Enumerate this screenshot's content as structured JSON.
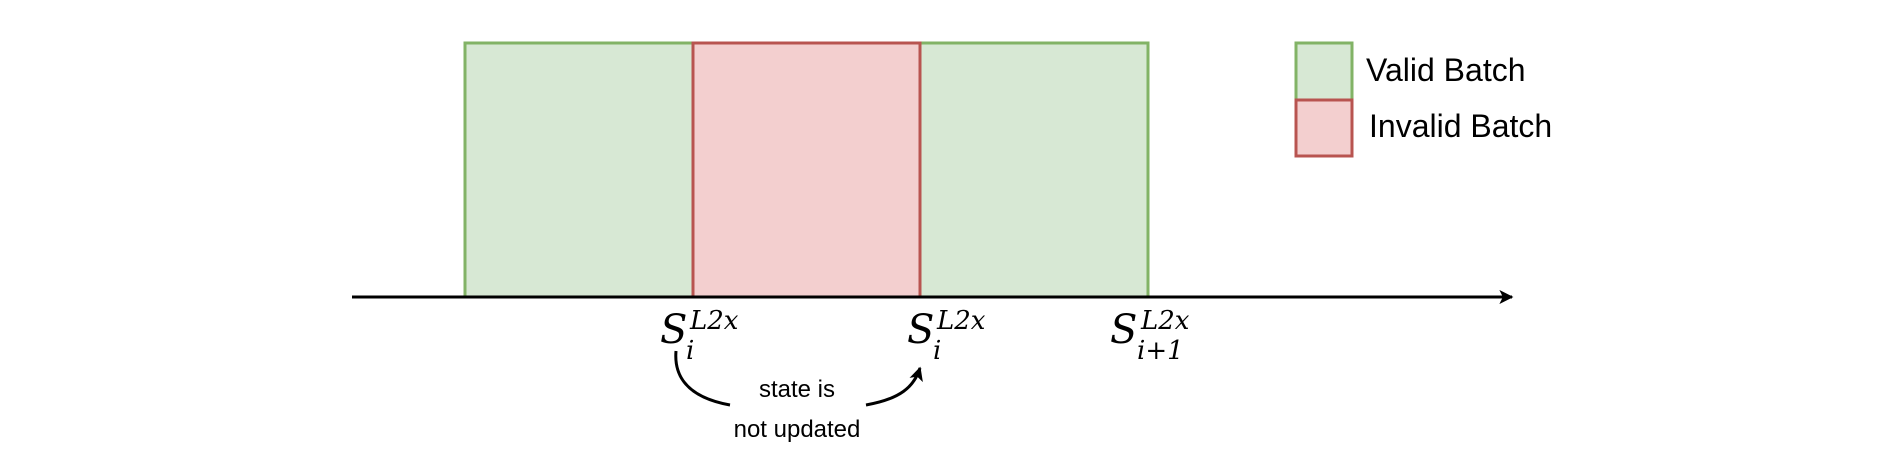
{
  "colors": {
    "valid_fill": "#d7e8d4",
    "valid_stroke": "#82b366",
    "invalid_fill": "#f3cfcf",
    "invalid_stroke": "#b85450",
    "axis": "#000000"
  },
  "batches": [
    {
      "type": "valid"
    },
    {
      "type": "invalid"
    },
    {
      "type": "valid"
    }
  ],
  "legend": {
    "valid_label": "Valid Batch",
    "invalid_label": "Invalid Batch"
  },
  "state_labels": [
    {
      "base": "S",
      "superscript": "L2x",
      "subscript": "i"
    },
    {
      "base": "S",
      "superscript": "L2x",
      "subscript": "i"
    },
    {
      "base": "S",
      "superscript": "L2x",
      "subscript": "i+1"
    }
  ],
  "annotation": {
    "line1": "state is",
    "line2": "not updated"
  }
}
